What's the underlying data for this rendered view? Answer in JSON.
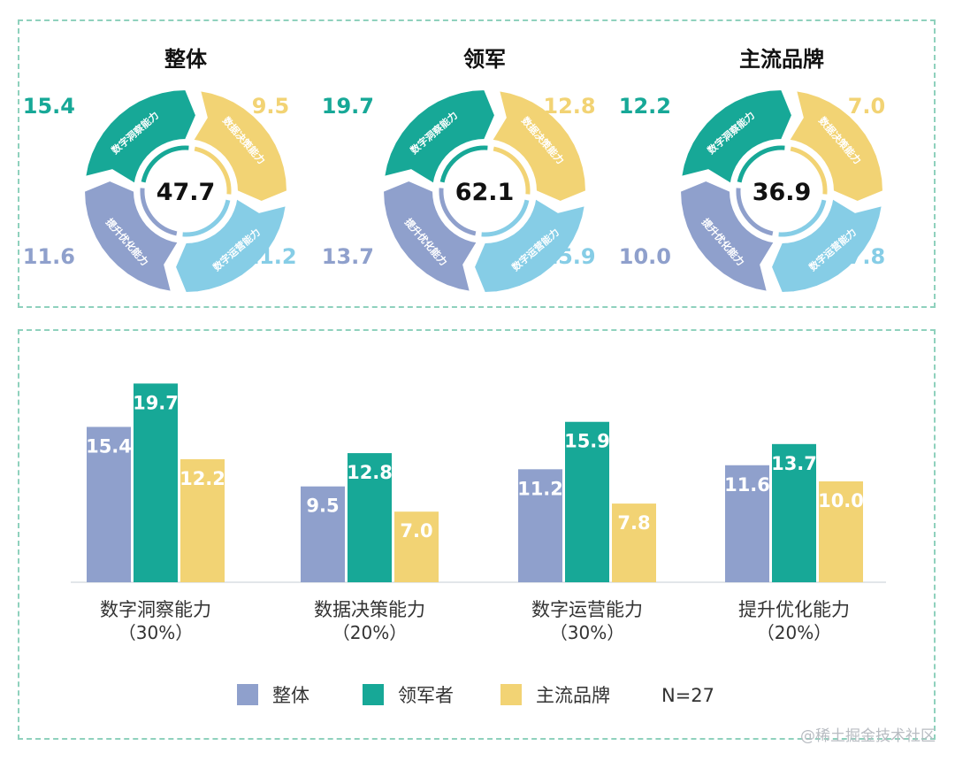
{
  "colors": {
    "overall": "#8fa0cc",
    "leader": "#17a897",
    "mainstream": "#f2d374",
    "insight": "#17a897",
    "decision": "#f2d374",
    "operation": "#86cde6",
    "optimize": "#8fa0cc",
    "border": "#8fd1bd"
  },
  "chart_data": [
    {
      "type": "pie",
      "charts": [
        {
          "title": "整体",
          "center": "47.7",
          "values": {
            "insight": "15.4",
            "decision": "9.5",
            "operation": "11.2",
            "optimize": "11.6"
          }
        },
        {
          "title": "领军",
          "center": "62.1",
          "values": {
            "insight": "19.7",
            "decision": "12.8",
            "operation": "15.9",
            "optimize": "13.7"
          }
        },
        {
          "title": "主流品牌",
          "center": "36.9",
          "values": {
            "insight": "12.2",
            "decision": "7.0",
            "operation": "7.8",
            "optimize": "10.0"
          }
        }
      ],
      "segment_labels": {
        "insight": "数字洞察能力",
        "decision": "数据决策能力",
        "operation": "数字运营能力",
        "optimize": "提升优化能力"
      }
    },
    {
      "type": "bar",
      "categories": [
        {
          "name": "数字洞察能力",
          "weight": "（30%）"
        },
        {
          "name": "数据决策能力",
          "weight": "（20%）"
        },
        {
          "name": "数字运营能力",
          "weight": "（30%）"
        },
        {
          "name": "提升优化能力",
          "weight": "（20%）"
        }
      ],
      "series": [
        {
          "name": "整体",
          "key": "overall",
          "values": [
            15.4,
            9.5,
            11.2,
            11.6
          ]
        },
        {
          "name": "领军者",
          "key": "leader",
          "values": [
            19.7,
            12.8,
            15.9,
            13.7
          ]
        },
        {
          "name": "主流品牌",
          "key": "mainstream",
          "values": [
            12.2,
            7.0,
            7.8,
            10.0
          ]
        }
      ],
      "ylim": [
        0,
        20
      ],
      "note": "N=27"
    }
  ],
  "watermark": "@稀土掘金技术社区"
}
